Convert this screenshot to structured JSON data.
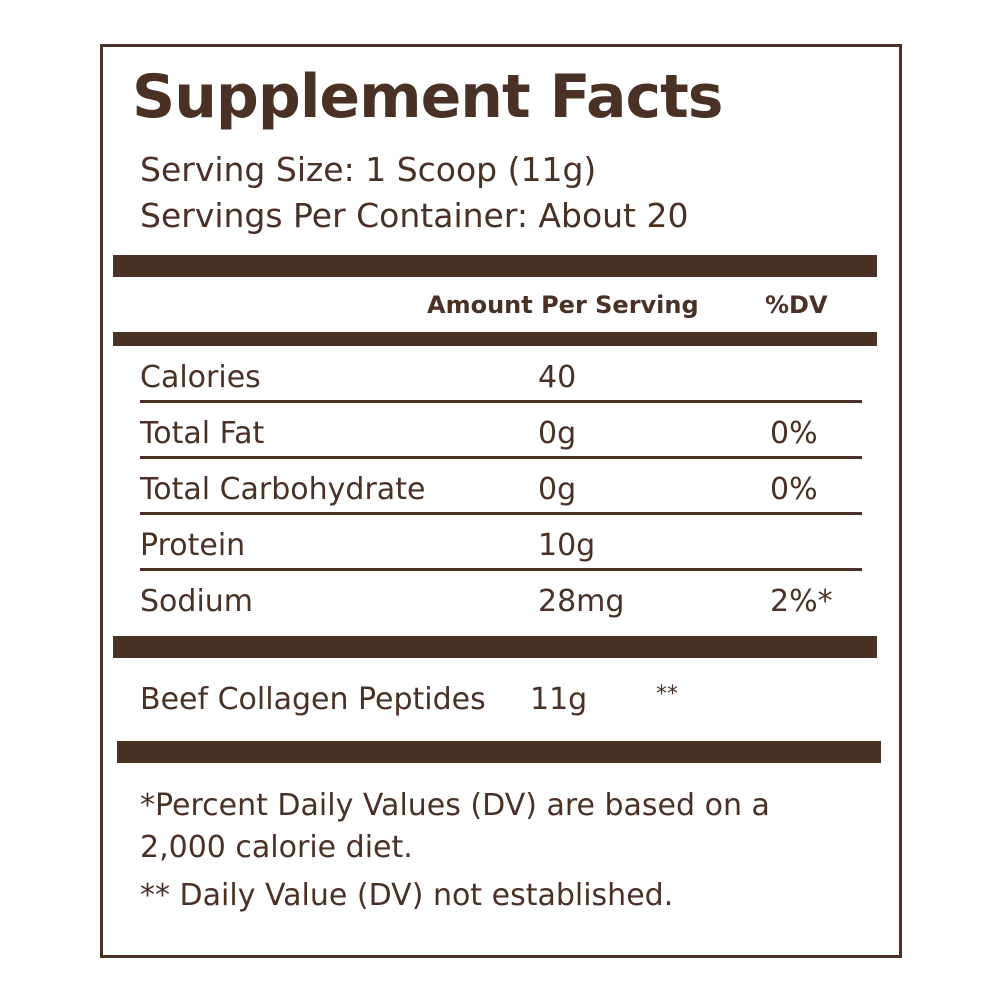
{
  "title": "Supplement Facts",
  "serving_size": "Serving Size: 1 Scoop (11g)",
  "servings_per_container": "Servings Per Container: About 20",
  "header": {
    "amount": "Amount Per Serving",
    "dv": "%DV"
  },
  "rows": [
    [
      "Calories",
      "40",
      ""
    ],
    [
      "Total Fat",
      "0g",
      "0%"
    ],
    [
      "Total Carbohydrate",
      "0g",
      "0%"
    ],
    [
      "Protein",
      "10g",
      ""
    ],
    [
      "Sodium",
      "28mg",
      "2%*"
    ]
  ],
  "other": [
    "Beef Collagen Peptides",
    "11g",
    "**"
  ],
  "footnotes": [
    "*Percent Daily Values (DV) are based on a 2,000 calorie diet.",
    "** Daily Value (DV) not established."
  ]
}
